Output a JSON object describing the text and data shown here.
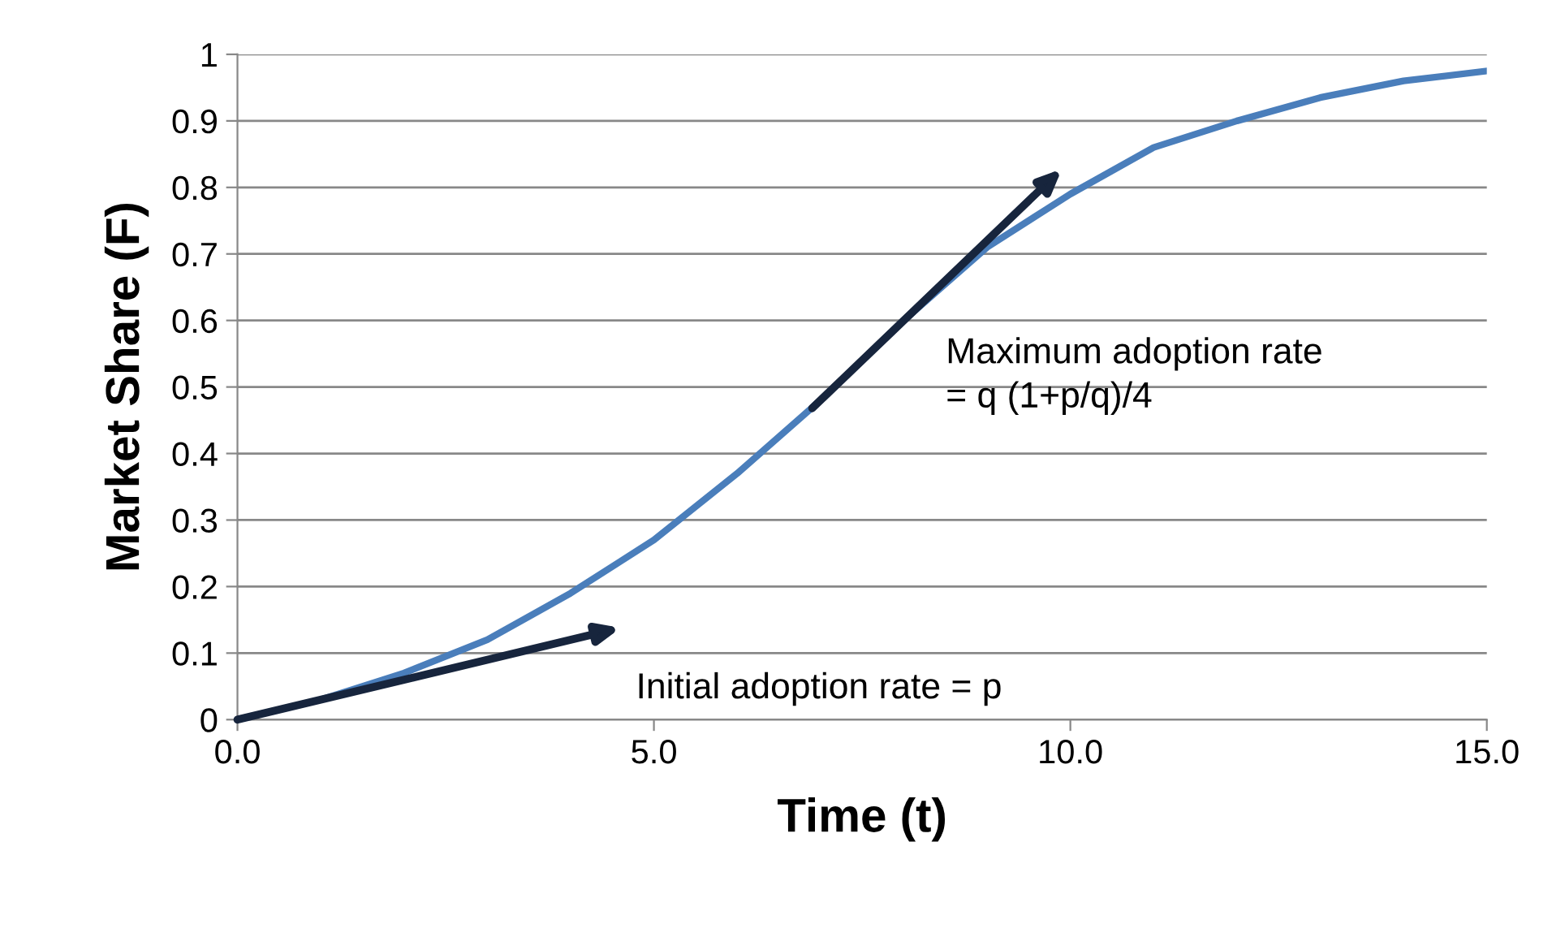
{
  "chart_data": {
    "type": "line",
    "xlabel": "Time (t)",
    "ylabel": "Market Share (F)",
    "x": [
      0,
      1,
      2,
      3,
      4,
      5,
      6,
      7,
      8,
      9,
      10,
      11,
      12,
      13,
      14,
      15
    ],
    "series": [
      {
        "color": "#4a7ebb",
        "values": [
          0,
          0.03,
          0.07,
          0.12,
          0.19,
          0.27,
          0.37,
          0.48,
          0.6,
          0.71,
          0.79,
          0.86,
          0.9,
          0.935,
          0.96,
          0.975
        ]
      }
    ],
    "xlim": [
      0,
      15
    ],
    "ylim": [
      0,
      1
    ],
    "xticks": [
      {
        "value": 0,
        "label": "0.0"
      },
      {
        "value": 5,
        "label": "5.0"
      },
      {
        "value": 10,
        "label": "10.0"
      },
      {
        "value": 15,
        "label": "15.0"
      }
    ],
    "yticks": [
      0,
      0.1,
      0.2,
      0.3,
      0.4,
      0.5,
      0.6,
      0.7,
      0.8,
      0.9,
      1
    ],
    "grid": "y",
    "legend": false,
    "marker": "none",
    "line_style": "solid",
    "annotations": [
      "Initial adoption rate = p",
      "Maximum adoption rate\n= q (1+p/q)/4"
    ]
  }
}
